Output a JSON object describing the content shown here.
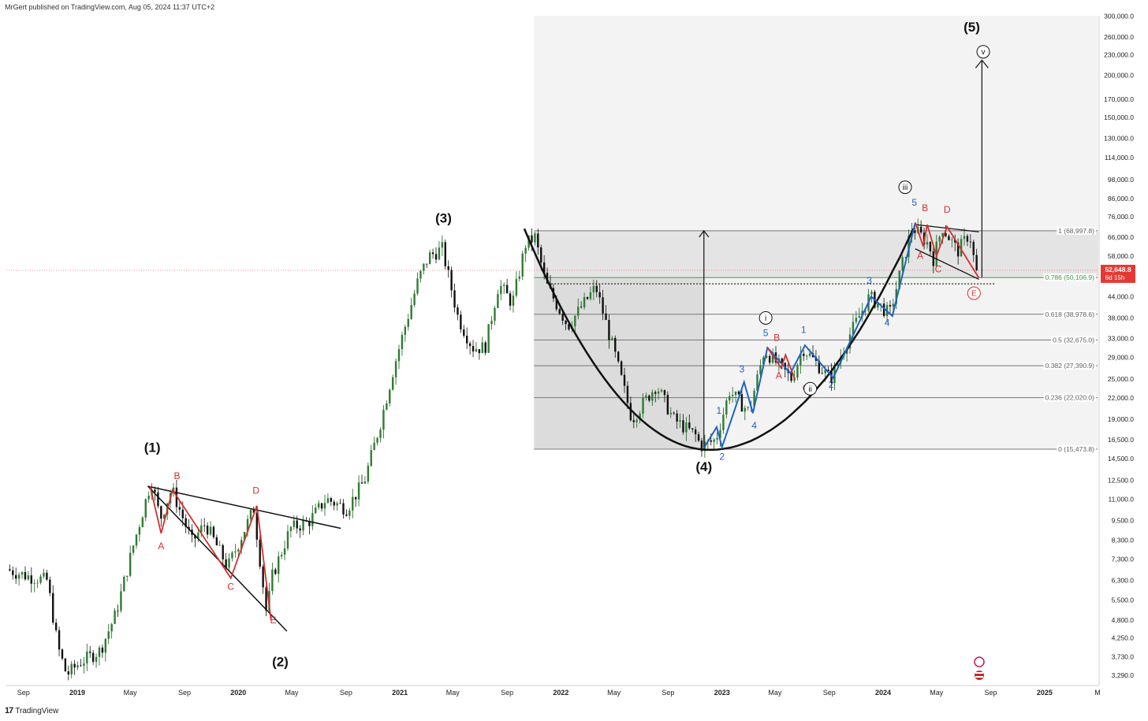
{
  "header": {
    "text": "MrGert published on TradingView.com, Aug 05, 2024 11:37 UTC+2"
  },
  "footer": {
    "logo": "17",
    "brand": "TradingView"
  },
  "chart_data": {
    "type": "candlestick",
    "title": "",
    "yscale": "log",
    "ylim": [
      3000,
      310000
    ],
    "x_tick_labels": [
      "Sep",
      "2019",
      "May",
      "Sep",
      "2020",
      "May",
      "Sep",
      "2021",
      "May",
      "Sep",
      "2022",
      "May",
      "Sep",
      "2023",
      "May",
      "Sep",
      "2024",
      "May",
      "Sep",
      "2025",
      "M"
    ],
    "x_tick_dates": [
      "2018-09-01",
      "2019-01-01",
      "2019-05-01",
      "2019-09-01",
      "2020-01-01",
      "2020-05-01",
      "2020-09-01",
      "2021-01-01",
      "2021-05-01",
      "2021-09-01",
      "2022-01-01",
      "2022-05-01",
      "2022-09-01",
      "2023-01-01",
      "2023-05-01",
      "2023-09-01",
      "2024-01-01",
      "2024-05-01",
      "2024-09-01",
      "2025-01-01",
      "2025-05-01"
    ],
    "y_tick_labels": [
      "300,000.0",
      "260,000.0",
      "230,000.0",
      "200,000.0",
      "170,000.0",
      "150,000.0",
      "130,000.0",
      "114,000.0",
      "98,000.0",
      "86,000.0",
      "76,000.0",
      "66,000.0",
      "58,000.0",
      "44,000.0",
      "38,000.0",
      "33,000.0",
      "29,000.0",
      "25,000.0",
      "22,000.0",
      "19,000.0",
      "16,500.0",
      "14,500.0",
      "12,500.0",
      "11,000.0",
      "9,500.0",
      "8,300.0",
      "7,300.0",
      "6,300.0",
      "5,500.0",
      "4,800.0",
      "4,250.0",
      "3,730.0",
      "3,290.0"
    ],
    "y_tick_values": [
      300000,
      260000,
      230000,
      200000,
      170000,
      150000,
      130000,
      114000,
      98000,
      86000,
      76000,
      66000,
      58000,
      44000,
      38000,
      33000,
      29000,
      25000,
      22000,
      19000,
      16500,
      14500,
      12500,
      11000,
      9500,
      8300,
      7300,
      6300,
      5500,
      4800,
      4250,
      3730,
      3290
    ],
    "price_badge": {
      "price": "52,648.8",
      "countdown": "6d 15h",
      "value": 52648.8,
      "color": "#e53935"
    },
    "fib_levels": [
      {
        "label": "1 (68,997.8)",
        "value": 68997.8
      },
      {
        "label": "0.786 (50,106.9)",
        "value": 50106.9,
        "color": "#43a047"
      },
      {
        "label": "0.618 (38,978.6)",
        "value": 38978.6
      },
      {
        "label": "0.5 (32,675.0)",
        "value": 32675.0
      },
      {
        "label": "0.382 (27,390.9)",
        "value": 27390.9
      },
      {
        "label": "0.236 (22,020.0)",
        "value": 22020.0
      },
      {
        "label": "0 (15,473.8)",
        "value": 15473.8
      }
    ],
    "wave_labels": [
      {
        "text": "(1)",
        "date": "2019-06-20",
        "price": 15200,
        "color": "#111111",
        "bold": true
      },
      {
        "text": "(2)",
        "date": "2020-04-05",
        "price": 3500,
        "color": "#111111",
        "bold": true
      },
      {
        "text": "(3)",
        "date": "2021-04-10",
        "price": 73000,
        "color": "#111111",
        "bold": true
      },
      {
        "text": "(4)",
        "date": "2022-11-21",
        "price": 13300,
        "color": "#111111",
        "bold": true
      },
      {
        "text": "(5)",
        "date": "2024-07-20",
        "price": 270000,
        "color": "#111111",
        "bold": true
      },
      {
        "text": "A",
        "date": "2019-07-10",
        "price": 7800,
        "color": "#d32f2f"
      },
      {
        "text": "B",
        "date": "2019-08-15",
        "price": 12600,
        "color": "#d32f2f"
      },
      {
        "text": "C",
        "date": "2019-12-15",
        "price": 5900,
        "color": "#d32f2f"
      },
      {
        "text": "D",
        "date": "2020-02-10",
        "price": 11400,
        "color": "#d32f2f"
      },
      {
        "text": "E",
        "date": "2020-03-20",
        "price": 4700,
        "color": "#d32f2f"
      },
      {
        "text": "1",
        "date": "2022-12-25",
        "price": 19700,
        "color": "#1e63c4"
      },
      {
        "text": "2",
        "date": "2023-01-01",
        "price": 14400,
        "color": "#1e63c4"
      },
      {
        "text": "3",
        "date": "2023-02-15",
        "price": 26200,
        "color": "#1e63c4"
      },
      {
        "text": "4",
        "date": "2023-03-15",
        "price": 17800,
        "color": "#1e63c4"
      },
      {
        "text": "5",
        "date": "2023-04-10",
        "price": 33600,
        "color": "#1e63c4"
      },
      {
        "text": "1",
        "date": "2023-07-05",
        "price": 34300,
        "color": "#1e63c4"
      },
      {
        "text": "2",
        "date": "2023-09-05",
        "price": 23600,
        "color": "#1e63c4"
      },
      {
        "text": "3",
        "date": "2023-12-01",
        "price": 48000,
        "color": "#1e63c4"
      },
      {
        "text": "4",
        "date": "2024-01-10",
        "price": 36000,
        "color": "#1e63c4"
      },
      {
        "text": "5",
        "date": "2024-03-12",
        "price": 82000,
        "color": "#1e63c4"
      },
      {
        "text": "A",
        "date": "2023-05-10",
        "price": 25100,
        "color": "#d32f2f"
      },
      {
        "text": "B",
        "date": "2023-05-05",
        "price": 32500,
        "color": "#d32f2f"
      },
      {
        "text": "C",
        "date": "2023-07-10",
        "price": 23000,
        "color": "#d32f2f"
      },
      {
        "text": "A",
        "date": "2024-03-25",
        "price": 57000,
        "color": "#d32f2f"
      },
      {
        "text": "B",
        "date": "2024-04-05",
        "price": 79000,
        "color": "#d32f2f"
      },
      {
        "text": "C",
        "date": "2024-05-05",
        "price": 52000,
        "color": "#d32f2f"
      },
      {
        "text": "D",
        "date": "2024-05-25",
        "price": 78000,
        "color": "#d32f2f"
      }
    ],
    "circled_labels": [
      {
        "text": "i",
        "date": "2023-04-10",
        "price": 38000,
        "color": "#111111"
      },
      {
        "text": "ii",
        "date": "2023-07-20",
        "price": 23400,
        "color": "#111111"
      },
      {
        "text": "iii",
        "date": "2024-02-20",
        "price": 93000,
        "color": "#111111"
      },
      {
        "text": "v",
        "date": "2024-08-15",
        "price": 235000,
        "color": "#111111"
      },
      {
        "text": "E",
        "date": "2024-07-25",
        "price": 45000,
        "color": "#d32f2f"
      }
    ]
  }
}
